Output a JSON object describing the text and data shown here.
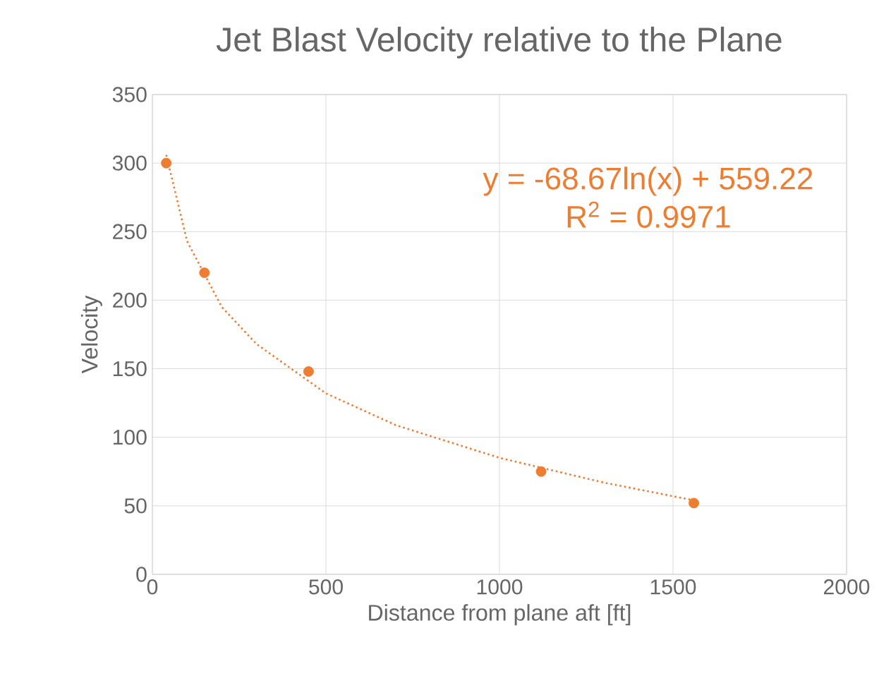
{
  "chart_data": {
    "type": "scatter",
    "title": "Jet Blast Velocity relative to the Plane",
    "xlabel": "Distance from plane aft [ft]",
    "ylabel": "Velocity",
    "xlim": [
      0,
      2000
    ],
    "xticks": [
      0,
      500,
      1000,
      1500,
      2000
    ],
    "ylim": [
      0,
      350
    ],
    "yticks": [
      0,
      50,
      100,
      150,
      200,
      250,
      300,
      350
    ],
    "grid": true,
    "marker": "circle",
    "series": [
      {
        "color": "#ed7d31",
        "x": [
          40,
          150,
          450,
          1120,
          1560
        ],
        "values": [
          300,
          220,
          148,
          75,
          52
        ]
      },
      {
        "type": "line",
        "color": "#ed7d31",
        "line_style": "dotted",
        "marker": "none",
        "x": [
          40,
          100,
          200,
          300,
          500,
          700,
          1000,
          1300,
          1560
        ],
        "values": [
          306,
          243,
          195,
          168,
          132,
          109,
          85,
          67,
          54
        ]
      }
    ],
    "annotations": [
      "y = -68.67ln(x) + 559.22",
      "R$^{2}$ = 0.9971"
    ]
  }
}
